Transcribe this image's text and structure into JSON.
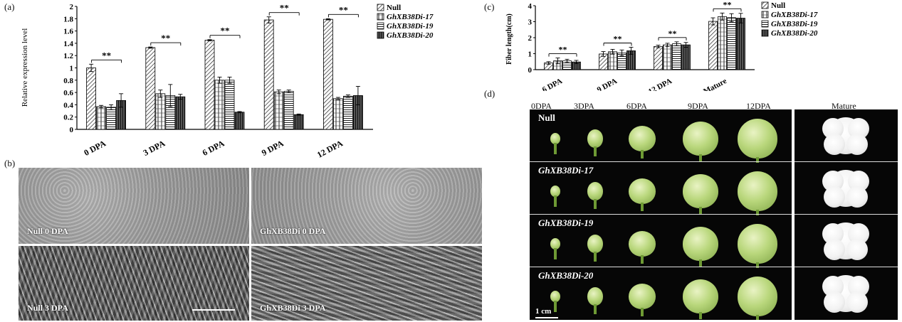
{
  "panels": {
    "a": "(a)",
    "b": "(b)",
    "c": "(c)",
    "d": "(d)"
  },
  "chart_data": [
    {
      "type": "bar",
      "panel": "a",
      "ylabel": "Relative expression level",
      "xlabel": "",
      "ylim": [
        0,
        2
      ],
      "yticks": [
        "0",
        "0.2",
        "0.4",
        "0.6",
        "0.8",
        "1",
        "1.2",
        "1.4",
        "1.6",
        "1.8",
        "2"
      ],
      "categories": [
        "0 DPA",
        "3 DPA",
        "6 DPA",
        "9 DPA",
        "12 DPA"
      ],
      "series": [
        {
          "name": "Null",
          "values": [
            1.0,
            1.33,
            1.45,
            1.78,
            1.79
          ],
          "errors": [
            0.06,
            0.01,
            0.01,
            0.05,
            0.01
          ]
        },
        {
          "name": "GhXB38Di-17",
          "values": [
            0.37,
            0.58,
            0.8,
            0.61,
            0.5
          ],
          "errors": [
            0.02,
            0.06,
            0.05,
            0.03,
            0.02
          ]
        },
        {
          "name": "GhXB38Di-19",
          "values": [
            0.36,
            0.55,
            0.8,
            0.62,
            0.54
          ],
          "errors": [
            0.04,
            0.18,
            0.05,
            0.02,
            0.02
          ]
        },
        {
          "name": "GhXB38Di-20",
          "values": [
            0.47,
            0.53,
            0.28,
            0.24,
            0.55
          ],
          "errors": [
            0.11,
            0.04,
            0.01,
            0.01,
            0.15
          ]
        }
      ],
      "significance": [
        "**",
        "**",
        "**",
        "**",
        "**"
      ],
      "legend": "top-right",
      "grid": false
    },
    {
      "type": "bar",
      "panel": "c",
      "ylabel": "Fiber length(cm)",
      "xlabel": "",
      "ylim": [
        0,
        4
      ],
      "yticks": [
        "0",
        "1",
        "2",
        "3",
        "4"
      ],
      "categories": [
        "6 DPA",
        "9 DPA",
        "12 DPA",
        "Mature"
      ],
      "series": [
        {
          "name": "Null",
          "values": [
            0.42,
            0.98,
            1.45,
            3.02
          ],
          "errors": [
            0.08,
            0.15,
            0.08,
            0.22
          ]
        },
        {
          "name": "GhXB38Di-17",
          "values": [
            0.55,
            1.12,
            1.55,
            3.32
          ],
          "errors": [
            0.18,
            0.15,
            0.1,
            0.22
          ]
        },
        {
          "name": "GhXB38Di-19",
          "values": [
            0.55,
            1.05,
            1.62,
            3.25
          ],
          "errors": [
            0.1,
            0.18,
            0.12,
            0.25
          ]
        },
        {
          "name": "GhXB38Di-20",
          "values": [
            0.48,
            1.18,
            1.55,
            3.22
          ],
          "errors": [
            0.1,
            0.22,
            0.15,
            0.3
          ]
        }
      ],
      "significance": [
        "**",
        "**",
        "**",
        "**"
      ],
      "legend": "top-right",
      "grid": false
    }
  ],
  "sem": {
    "null_0": "Null 0 DPA",
    "xb_0": "GhXB38Di 0 DPA",
    "null_3": "Null 3 DPA",
    "xb_3": "GhXB38Di 3 DPA"
  },
  "bolls": {
    "columns": [
      "0DPA",
      "3DPA",
      "6DPA",
      "9DPA",
      "12DPA",
      "Mature"
    ],
    "rows": [
      "Null",
      "GhXB38Di-17",
      "GhXB38Di-19",
      "GhXB38Di-20"
    ],
    "scale": "1 cm"
  },
  "colors": {
    "photo_bg": "#060606",
    "sem_gray": "#9a9a9a",
    "boll_green": "#b9d77c"
  }
}
